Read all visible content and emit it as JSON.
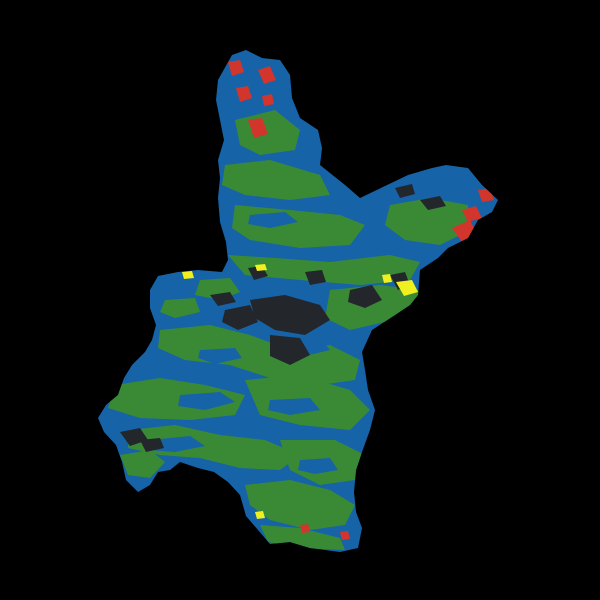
{
  "map": {
    "background_color": "#000000",
    "classes": [
      {
        "name": "water-blue",
        "color": "#1663a8"
      },
      {
        "name": "vegetation-green",
        "color": "#3a8a35"
      },
      {
        "name": "dark-urban",
        "color": "#23262b"
      },
      {
        "name": "red-patches",
        "color": "#d2352b"
      },
      {
        "name": "yellow-patches",
        "color": "#f0f020"
      }
    ]
  }
}
